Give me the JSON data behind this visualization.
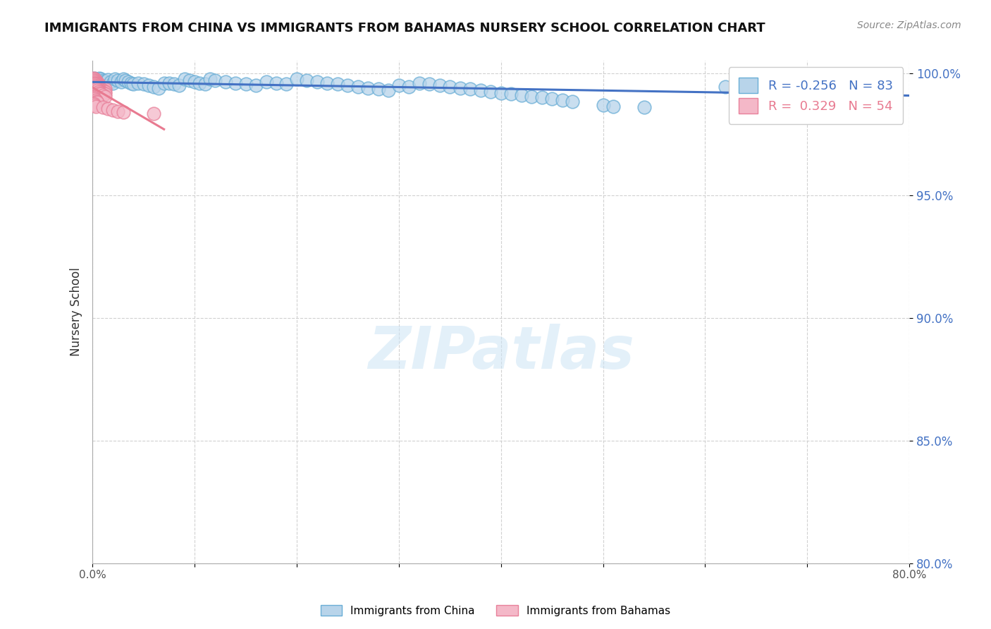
{
  "title": "IMMIGRANTS FROM CHINA VS IMMIGRANTS FROM BAHAMAS NURSERY SCHOOL CORRELATION CHART",
  "source": "Source: ZipAtlas.com",
  "ylabel": "Nursery School",
  "xlim": [
    0.0,
    0.8
  ],
  "ylim": [
    0.8,
    1.005
  ],
  "yticks": [
    0.8,
    0.85,
    0.9,
    0.95,
    1.0
  ],
  "ytick_labels": [
    "80.0%",
    "85.0%",
    "90.0%",
    "95.0%",
    "100.0%"
  ],
  "xtick_labels": [
    "0.0%",
    "",
    "",
    "",
    "",
    "",
    "",
    "",
    "80.0%"
  ],
  "legend_R_blue": "-0.256",
  "legend_N_blue": "83",
  "legend_R_pink": "0.329",
  "legend_N_pink": "54",
  "blue_color": "#b8d4ea",
  "pink_color": "#f4b8c8",
  "blue_edge_color": "#6aaed6",
  "pink_edge_color": "#e8809a",
  "blue_line_color": "#4472c4",
  "pink_line_color": "#e87a90",
  "watermark": "ZIPatlas",
  "blue_scatter_x": [
    0.002,
    0.003,
    0.004,
    0.005,
    0.006,
    0.007,
    0.008,
    0.01,
    0.012,
    0.015,
    0.018,
    0.02,
    0.022,
    0.025,
    0.028,
    0.03,
    0.032,
    0.035,
    0.038,
    0.04,
    0.045,
    0.05,
    0.055,
    0.06,
    0.065,
    0.07,
    0.075,
    0.08,
    0.085,
    0.09,
    0.095,
    0.1,
    0.105,
    0.11,
    0.115,
    0.12,
    0.13,
    0.14,
    0.15,
    0.16,
    0.17,
    0.18,
    0.19,
    0.2,
    0.21,
    0.22,
    0.23,
    0.24,
    0.25,
    0.26,
    0.27,
    0.28,
    0.29,
    0.3,
    0.31,
    0.32,
    0.33,
    0.34,
    0.35,
    0.36,
    0.37,
    0.38,
    0.39,
    0.4,
    0.41,
    0.42,
    0.43,
    0.44,
    0.45,
    0.46,
    0.47,
    0.5,
    0.51,
    0.54,
    0.62,
    0.65,
    0.7,
    0.75,
    0.76,
    0.78,
    0.003,
    0.005,
    0.007
  ],
  "blue_scatter_y": [
    0.998,
    0.9975,
    0.997,
    0.9965,
    0.996,
    0.998,
    0.9975,
    0.997,
    0.9968,
    0.9972,
    0.9965,
    0.996,
    0.9975,
    0.997,
    0.9965,
    0.9975,
    0.997,
    0.9965,
    0.996,
    0.9955,
    0.996,
    0.9955,
    0.995,
    0.9945,
    0.994,
    0.996,
    0.9958,
    0.9955,
    0.995,
    0.9975,
    0.997,
    0.9965,
    0.996,
    0.9955,
    0.9975,
    0.997,
    0.9965,
    0.996,
    0.9955,
    0.995,
    0.9965,
    0.996,
    0.9955,
    0.9975,
    0.997,
    0.9965,
    0.996,
    0.9955,
    0.995,
    0.9945,
    0.994,
    0.9935,
    0.993,
    0.995,
    0.9945,
    0.996,
    0.9955,
    0.995,
    0.9945,
    0.994,
    0.9935,
    0.993,
    0.9925,
    0.992,
    0.9915,
    0.991,
    0.9905,
    0.99,
    0.9895,
    0.989,
    0.9885,
    0.987,
    0.9865,
    0.986,
    0.9945,
    0.996,
    0.9965,
    0.996,
    0.9955,
    0.995,
    0.9945,
    0.994,
    0.9935
  ],
  "pink_scatter_x": [
    0.001,
    0.002,
    0.003,
    0.004,
    0.005,
    0.006,
    0.007,
    0.008,
    0.01,
    0.012,
    0.001,
    0.002,
    0.003,
    0.004,
    0.005,
    0.006,
    0.007,
    0.008,
    0.01,
    0.012,
    0.001,
    0.002,
    0.003,
    0.004,
    0.005,
    0.006,
    0.007,
    0.008,
    0.01,
    0.012,
    0.001,
    0.002,
    0.003,
    0.004,
    0.005,
    0.006,
    0.007,
    0.008,
    0.01,
    0.012,
    0.001,
    0.002,
    0.003,
    0.004,
    0.005,
    0.001,
    0.002,
    0.003,
    0.01,
    0.015,
    0.02,
    0.025,
    0.03,
    0.06
  ],
  "pink_scatter_y": [
    0.998,
    0.9975,
    0.997,
    0.9965,
    0.996,
    0.9955,
    0.995,
    0.9945,
    0.994,
    0.9935,
    0.997,
    0.9965,
    0.996,
    0.9955,
    0.995,
    0.9945,
    0.994,
    0.9935,
    0.993,
    0.9925,
    0.996,
    0.9955,
    0.995,
    0.9945,
    0.994,
    0.9935,
    0.993,
    0.9925,
    0.992,
    0.9915,
    0.995,
    0.9945,
    0.994,
    0.9935,
    0.993,
    0.9925,
    0.992,
    0.9915,
    0.991,
    0.9905,
    0.99,
    0.9895,
    0.989,
    0.9885,
    0.988,
    0.9875,
    0.987,
    0.9865,
    0.986,
    0.9855,
    0.985,
    0.9845,
    0.984,
    0.9835
  ]
}
